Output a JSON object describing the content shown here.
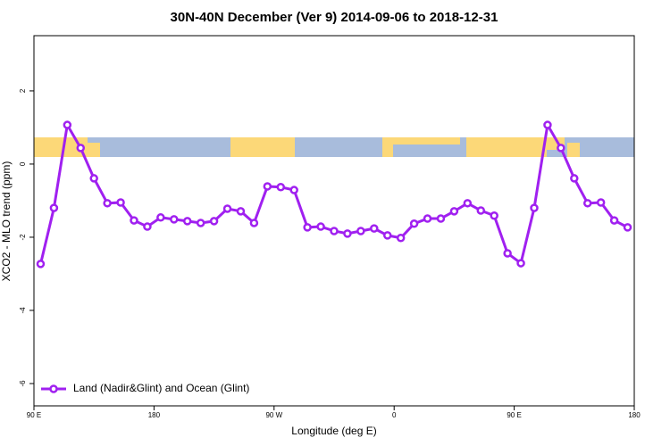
{
  "chart_data": {
    "type": "line",
    "title": "30N-40N December (Ver 9)   2014-09-06 to 2018-12-31",
    "x_label": "Longitude (deg E)",
    "y_label": "XCO2 - MLO trend (ppm)",
    "x": [
      95,
      105,
      115,
      125,
      135,
      145,
      155,
      165,
      175,
      185,
      195,
      205,
      215,
      225,
      235,
      245,
      255,
      265,
      275,
      285,
      295,
      305,
      315,
      325,
      335,
      345,
      355,
      365,
      375,
      385,
      395,
      405,
      415,
      425,
      435,
      445,
      455,
      465,
      475,
      485,
      495,
      505,
      515,
      525,
      535
    ],
    "series": [
      {
        "name": "Land (Nadir&Glint) and Ocean (Glint)",
        "color": "#a020f0",
        "values": [
          -2.73,
          -1.2,
          1.07,
          0.44,
          -0.39,
          -1.07,
          -1.05,
          -1.54,
          -1.71,
          -1.46,
          -1.51,
          -1.56,
          -1.61,
          -1.56,
          -1.22,
          -1.29,
          -1.61,
          -0.61,
          -0.63,
          -0.71,
          -1.73,
          -1.71,
          -1.83,
          -1.9,
          -1.83,
          -1.76,
          -1.95,
          -2.02,
          -1.63,
          -1.49,
          -1.49,
          -1.29,
          -1.07,
          -1.27,
          -1.41,
          -2.44,
          -2.71,
          -1.2,
          1.07,
          0.44,
          -0.39,
          -1.07,
          -1.05,
          -1.54,
          -1.73
        ]
      }
    ],
    "xlim": [
      90,
      540
    ],
    "xticks": [
      {
        "value": 90,
        "label": "90 E"
      },
      180,
      {
        "value": 270,
        "label": "90 W"
      },
      {
        "value": 360,
        "label": "0"
      },
      {
        "value": 450,
        "label": "90 E"
      },
      {
        "value": 540,
        "label": "180"
      }
    ],
    "ylim": [
      -6.61,
      3.51
    ],
    "yticks": [
      2,
      0,
      -2,
      -4,
      -6
    ],
    "legend": "bottomleft"
  }
}
